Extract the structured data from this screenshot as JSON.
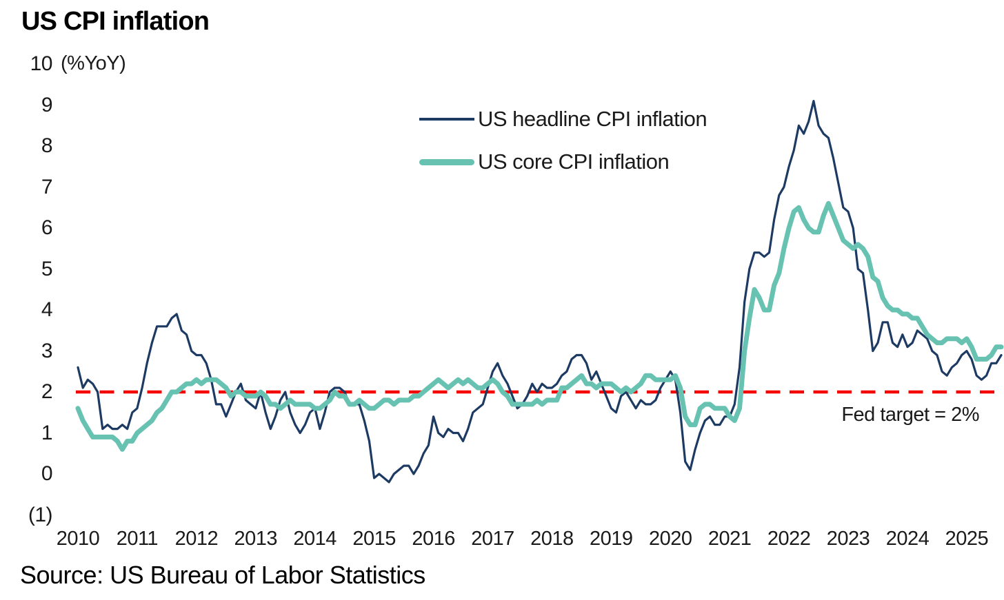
{
  "title": "US CPI inflation",
  "unit_label": "(%YoY)",
  "source": "Source: US Bureau of Labor Statistics",
  "annotation": {
    "fed_target": "Fed target = 2%"
  },
  "legend": [
    {
      "label": "US headline CPI inflation",
      "color": "#1d3a63"
    },
    {
      "label": "US core CPI inflation",
      "color": "#68c2b2"
    }
  ],
  "axes": {
    "y_ticks": [
      {
        "label": "10",
        "value": 10
      },
      {
        "label": "9",
        "value": 9
      },
      {
        "label": "8",
        "value": 8
      },
      {
        "label": "7",
        "value": 7
      },
      {
        "label": "6",
        "value": 6
      },
      {
        "label": "5",
        "value": 5
      },
      {
        "label": "4",
        "value": 4
      },
      {
        "label": "3",
        "value": 3
      },
      {
        "label": "2",
        "value": 2
      },
      {
        "label": "1",
        "value": 1
      },
      {
        "label": "0",
        "value": 0
      },
      {
        "label": "(1)",
        "value": -1
      }
    ],
    "x_ticks": [
      "2010",
      "2011",
      "2012",
      "2013",
      "2014",
      "2015",
      "2016",
      "2017",
      "2018",
      "2019",
      "2020",
      "2021",
      "2022",
      "2023",
      "2024",
      "2025"
    ]
  },
  "chart_data": {
    "type": "line",
    "frequency": "monthly",
    "x_start": "2010-01",
    "x_end": "2025-08",
    "ylim": [
      -1,
      10
    ],
    "grid": false,
    "legend_position": "upper-center",
    "fed_target_line": {
      "value": 2,
      "style": "dashed",
      "color": "#f70000",
      "label": "Fed target = 2%"
    },
    "series": [
      {
        "name": "US headline CPI inflation",
        "color": "#1d3a63",
        "stroke_width": 3.2,
        "values": [
          2.6,
          2.1,
          2.3,
          2.2,
          2.0,
          1.1,
          1.2,
          1.1,
          1.1,
          1.2,
          1.1,
          1.5,
          1.6,
          2.1,
          2.7,
          3.2,
          3.6,
          3.6,
          3.6,
          3.8,
          3.9,
          3.5,
          3.4,
          3.0,
          2.9,
          2.9,
          2.7,
          2.3,
          1.7,
          1.7,
          1.4,
          1.7,
          2.0,
          2.2,
          1.8,
          1.7,
          1.6,
          2.0,
          1.5,
          1.1,
          1.4,
          1.8,
          2.0,
          1.5,
          1.2,
          1.0,
          1.2,
          1.5,
          1.6,
          1.1,
          1.5,
          2.0,
          2.1,
          2.1,
          2.0,
          1.7,
          1.7,
          1.7,
          1.3,
          0.8,
          -0.1,
          0.0,
          -0.1,
          -0.2,
          0.0,
          0.1,
          0.2,
          0.2,
          0.0,
          0.2,
          0.5,
          0.7,
          1.4,
          1.0,
          0.9,
          1.1,
          1.0,
          1.0,
          0.8,
          1.1,
          1.5,
          1.6,
          1.7,
          2.1,
          2.5,
          2.7,
          2.4,
          2.2,
          1.9,
          1.6,
          1.7,
          1.9,
          2.2,
          2.0,
          2.2,
          2.1,
          2.1,
          2.2,
          2.4,
          2.5,
          2.8,
          2.9,
          2.9,
          2.7,
          2.3,
          2.5,
          2.2,
          1.9,
          1.6,
          1.5,
          1.9,
          2.0,
          1.8,
          1.6,
          1.8,
          1.7,
          1.7,
          1.8,
          2.1,
          2.3,
          2.5,
          2.3,
          1.5,
          0.3,
          0.1,
          0.6,
          1.0,
          1.3,
          1.4,
          1.2,
          1.2,
          1.4,
          1.4,
          1.7,
          2.6,
          4.2,
          5.0,
          5.4,
          5.4,
          5.3,
          5.4,
          6.2,
          6.8,
          7.0,
          7.5,
          7.9,
          8.5,
          8.3,
          8.6,
          9.1,
          8.5,
          8.3,
          8.2,
          7.7,
          7.1,
          6.5,
          6.4,
          6.0,
          5.0,
          4.9,
          4.0,
          3.0,
          3.2,
          3.7,
          3.7,
          3.2,
          3.1,
          3.4,
          3.1,
          3.2,
          3.5,
          3.4,
          3.3,
          3.0,
          2.9,
          2.5,
          2.4,
          2.6,
          2.7,
          2.9,
          3.0,
          2.8,
          2.4,
          2.3,
          2.4,
          2.7,
          2.7,
          2.9
        ]
      },
      {
        "name": "US core CPI inflation",
        "color": "#68c2b2",
        "stroke_width": 7,
        "values": [
          1.6,
          1.3,
          1.1,
          0.9,
          0.9,
          0.9,
          0.9,
          0.9,
          0.8,
          0.6,
          0.8,
          0.8,
          1.0,
          1.1,
          1.2,
          1.3,
          1.5,
          1.6,
          1.8,
          2.0,
          2.0,
          2.1,
          2.2,
          2.2,
          2.3,
          2.2,
          2.3,
          2.3,
          2.3,
          2.2,
          2.1,
          1.9,
          2.0,
          2.0,
          1.9,
          1.9,
          1.9,
          2.0,
          1.9,
          1.7,
          1.7,
          1.6,
          1.7,
          1.8,
          1.7,
          1.7,
          1.7,
          1.7,
          1.6,
          1.6,
          1.7,
          1.8,
          2.0,
          1.9,
          1.9,
          1.7,
          1.7,
          1.8,
          1.7,
          1.6,
          1.6,
          1.7,
          1.8,
          1.8,
          1.7,
          1.8,
          1.8,
          1.8,
          1.9,
          1.9,
          2.0,
          2.1,
          2.2,
          2.3,
          2.2,
          2.1,
          2.2,
          2.3,
          2.2,
          2.3,
          2.2,
          2.1,
          2.1,
          2.2,
          2.3,
          2.2,
          2.0,
          1.9,
          1.7,
          1.7,
          1.7,
          1.7,
          1.7,
          1.8,
          1.7,
          1.8,
          1.8,
          1.8,
          2.1,
          2.1,
          2.2,
          2.3,
          2.4,
          2.2,
          2.2,
          2.1,
          2.2,
          2.2,
          2.2,
          2.1,
          2.0,
          2.1,
          2.0,
          2.1,
          2.2,
          2.4,
          2.4,
          2.3,
          2.3,
          2.3,
          2.3,
          2.4,
          2.1,
          1.4,
          1.2,
          1.2,
          1.6,
          1.7,
          1.7,
          1.6,
          1.6,
          1.6,
          1.4,
          1.3,
          1.6,
          3.0,
          3.8,
          4.5,
          4.3,
          4.0,
          4.0,
          4.6,
          4.9,
          5.5,
          6.0,
          6.4,
          6.5,
          6.2,
          6.0,
          5.9,
          5.9,
          6.3,
          6.6,
          6.3,
          6.0,
          5.7,
          5.6,
          5.5,
          5.6,
          5.5,
          5.3,
          4.8,
          4.7,
          4.3,
          4.1,
          4.0,
          4.0,
          3.9,
          3.9,
          3.8,
          3.8,
          3.6,
          3.4,
          3.3,
          3.2,
          3.2,
          3.3,
          3.3,
          3.3,
          3.2,
          3.3,
          3.1,
          2.8,
          2.8,
          2.8,
          2.9,
          3.1,
          3.1
        ]
      }
    ]
  }
}
